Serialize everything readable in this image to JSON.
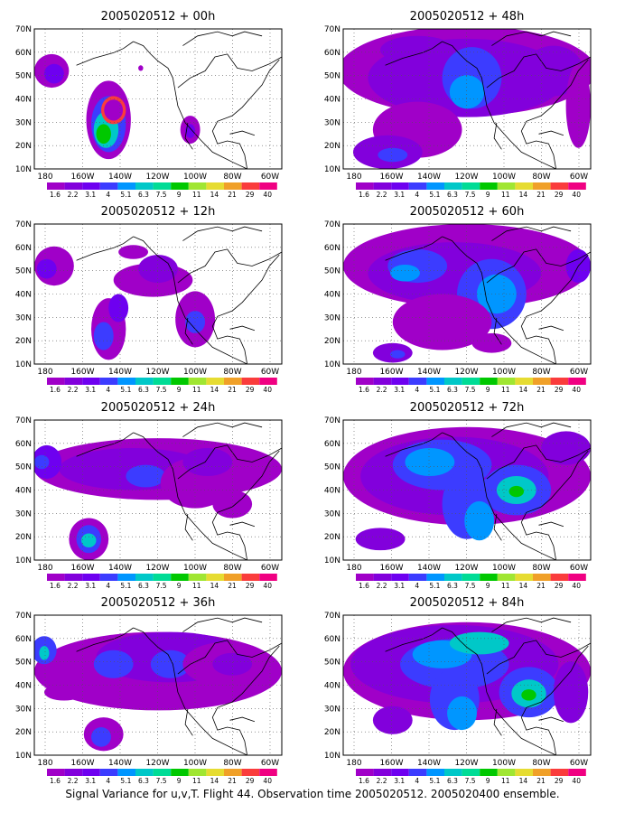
{
  "figure": {
    "caption": "Signal Variance for u,v,T. Flight 44. Observation time 2005020512. 2005020400 ensemble.",
    "lat_labels": [
      "70N",
      "60N",
      "50N",
      "40N",
      "30N",
      "20N",
      "10N"
    ],
    "lon_labels": [
      "180",
      "160W",
      "140W",
      "120W",
      "100W",
      "80W",
      "60W"
    ],
    "colorbar_labels": [
      "1.6",
      "2.2",
      "3.1",
      "4",
      "5.1",
      "6.3",
      "7.5",
      "9",
      "11",
      "14",
      "21",
      "29",
      "40"
    ],
    "colorbar_colors": [
      "#a000c8",
      "#8200dc",
      "#6e00f0",
      "#3c3cff",
      "#0096ff",
      "#00c8c8",
      "#00dc96",
      "#00c800",
      "#a0e632",
      "#e6dc32",
      "#f0a028",
      "#fa3c3c",
      "#f00082"
    ],
    "panels": [
      {
        "title": "2005020512 + 00h"
      },
      {
        "title": "2005020512 + 48h"
      },
      {
        "title": "2005020512 + 12h"
      },
      {
        "title": "2005020512 + 60h"
      },
      {
        "title": "2005020512 + 24h"
      },
      {
        "title": "2005020512 + 72h"
      },
      {
        "title": "2005020512 + 36h"
      },
      {
        "title": "2005020512 + 84h"
      }
    ]
  }
}
